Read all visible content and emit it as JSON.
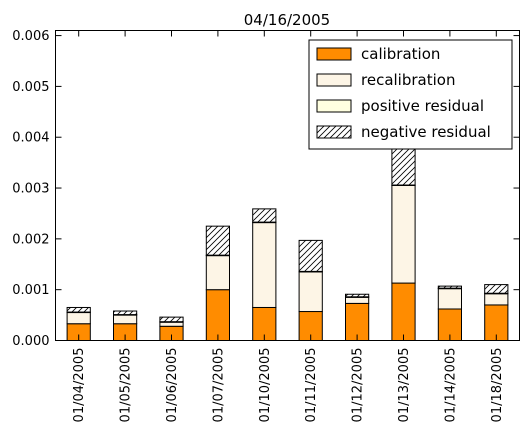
{
  "chart_data": {
    "type": "bar",
    "stacked": true,
    "title": "04/16/2005",
    "xlabel": "",
    "ylabel": "",
    "categories": [
      "01/04/2005",
      "01/05/2005",
      "01/06/2005",
      "01/07/2005",
      "01/10/2005",
      "01/11/2005",
      "01/12/2005",
      "01/13/2005",
      "01/14/2005",
      "01/18/2005"
    ],
    "series": [
      {
        "name": "calibration",
        "color": "#ff8c00",
        "pattern": "solid",
        "values": [
          0.00033,
          0.00033,
          0.00028,
          0.001,
          0.00065,
          0.00057,
          0.00073,
          0.00113,
          0.00062,
          0.0007
        ]
      },
      {
        "name": "recalibration",
        "color": "#fdf5e6",
        "pattern": "solid",
        "values": [
          0.00022,
          0.00017,
          8e-05,
          0.00067,
          0.00167,
          0.00078,
          0.00012,
          0.00192,
          0.0004,
          0.00022
        ]
      },
      {
        "name": "positive residual",
        "color": "#ffffe0",
        "pattern": "solid",
        "values": [
          1e-05,
          1e-05,
          1e-05,
          1e-05,
          1e-05,
          1e-05,
          1e-05,
          1e-05,
          1e-05,
          1e-05
        ]
      },
      {
        "name": "negative residual",
        "color": "#ffffff",
        "pattern": "hatch",
        "values": [
          9e-05,
          7e-05,
          9e-05,
          0.00057,
          0.00026,
          0.00061,
          5e-05,
          0.00074,
          4e-05,
          0.00017
        ]
      }
    ],
    "ylim": [
      0,
      0.0061
    ],
    "yticks": [
      "0.000",
      "0.001",
      "0.002",
      "0.003",
      "0.004",
      "0.005",
      "0.006"
    ],
    "grid": false,
    "legend_position": "top-right"
  }
}
